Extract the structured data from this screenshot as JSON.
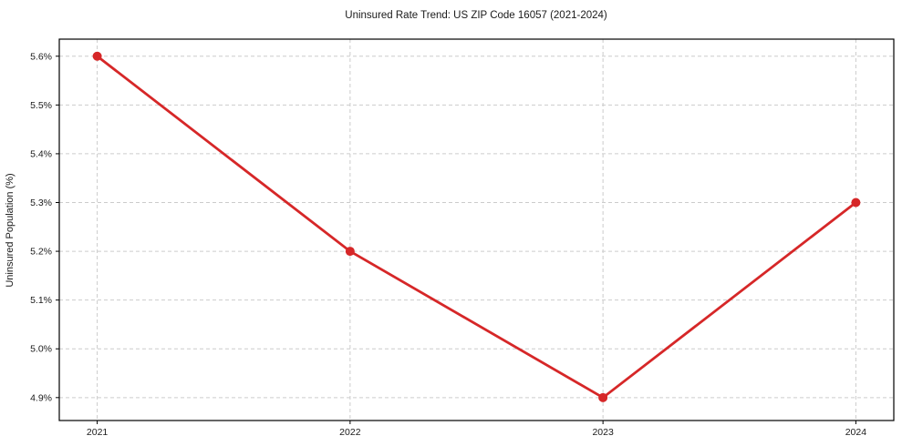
{
  "chart_data": {
    "type": "line",
    "title": "Uninsured Rate Trend: US ZIP Code 16057 (2021-2024)",
    "xlabel": "",
    "ylabel": "Uninsured Population (%)",
    "x": [
      2021,
      2022,
      2023,
      2024
    ],
    "x_tick_labels": [
      "2021",
      "2022",
      "2023",
      "2024"
    ],
    "series": [
      {
        "name": "Uninsured rate",
        "values": [
          5.6,
          5.2,
          4.9,
          5.3
        ],
        "color": "#d62728",
        "marker": "circle"
      }
    ],
    "y_tick_values": [
      4.9,
      5.0,
      5.1,
      5.2,
      5.3,
      5.4,
      5.5,
      5.6
    ],
    "y_tick_labels": [
      "4.9%",
      "5.0%",
      "5.1%",
      "5.2%",
      "5.3%",
      "5.4%",
      "5.5%",
      "5.6%"
    ],
    "xlim": [
      2020.85,
      2024.15
    ],
    "ylim": [
      4.853,
      5.635
    ],
    "grid": true,
    "grid_style": "dashed",
    "grid_color": "#cccccc",
    "frame_color": "#000000",
    "legend_position": "none"
  }
}
